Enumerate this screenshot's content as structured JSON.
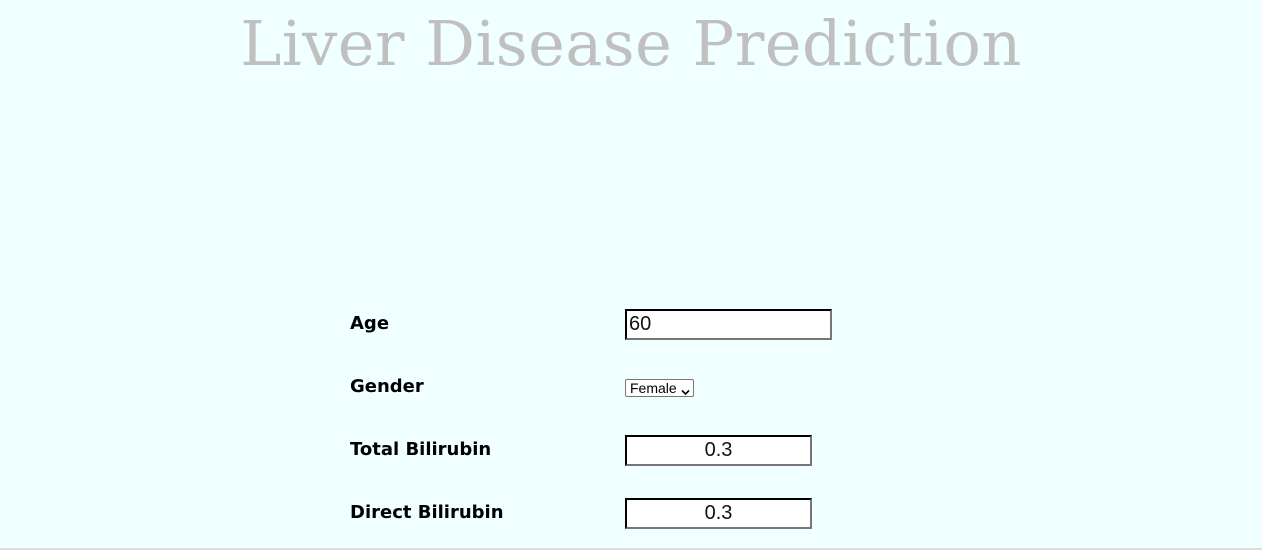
{
  "page": {
    "title": "Liver Disease Prediction",
    "background_color": "#f0ffff",
    "title_color": "#c0c0c0"
  },
  "form": {
    "age": {
      "label": "Age",
      "value": "60"
    },
    "gender": {
      "label": "Gender",
      "selected": "Female",
      "icon": "chevron-down-icon"
    },
    "total_bilirubin": {
      "label": "Total Bilirubin",
      "value": "0.3"
    },
    "direct_bilirubin": {
      "label": "Direct Bilirubin",
      "value": "0.3"
    }
  }
}
